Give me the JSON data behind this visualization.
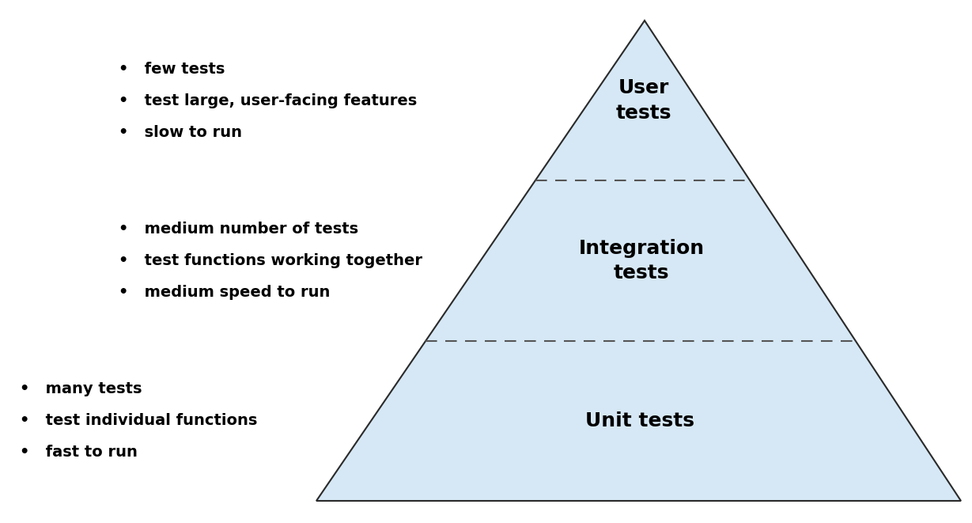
{
  "background_color": "#ffffff",
  "pyramid_fill_color": "#d6e8f5",
  "pyramid_edge_color": "#2a2a2a",
  "dashed_line_color": "#555555",
  "text_color": "#000000",
  "labels": [
    "User\ntests",
    "Integration\ntests",
    "Unit tests"
  ],
  "label_fontsize": 18,
  "bullet_groups": [
    {
      "lines": [
        "few tests",
        "test large, user-facing features",
        "slow to run"
      ]
    },
    {
      "lines": [
        "medium number of tests",
        "test functions working together",
        "medium speed to run"
      ]
    },
    {
      "lines": [
        "many tests",
        "test individual functions",
        "fast to run"
      ]
    }
  ],
  "bullet_fontsize": 14,
  "figsize": [
    12.29,
    6.61
  ],
  "dpi": 100
}
